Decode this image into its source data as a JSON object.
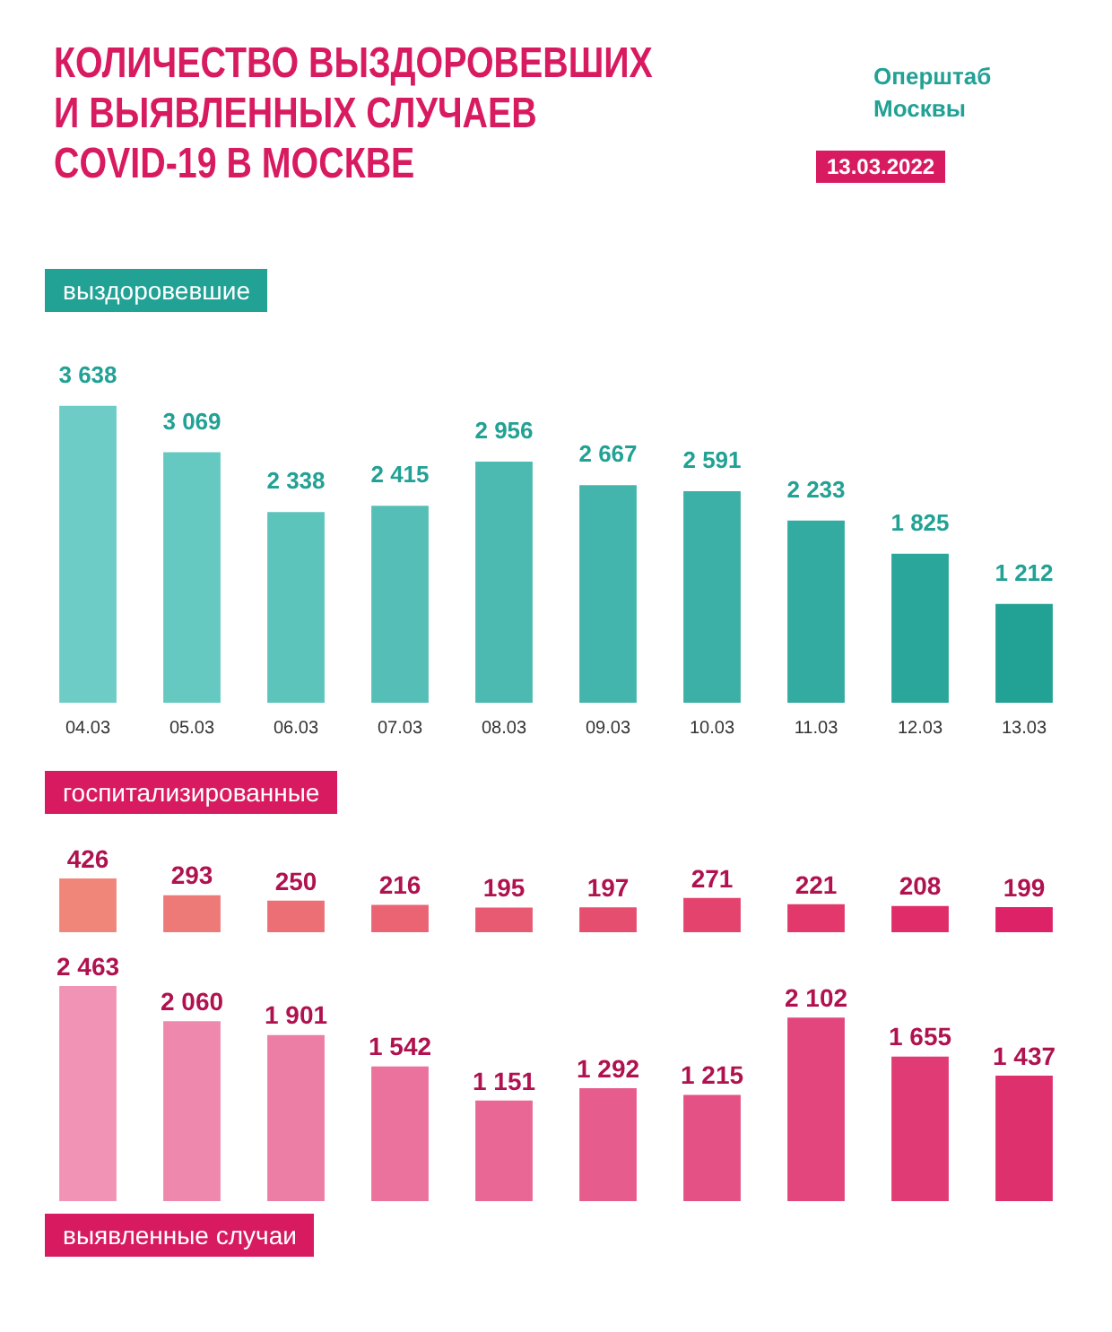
{
  "chart_data": [
    {
      "type": "bar",
      "title": "КОЛИЧЕСТВО ВЫЗДОРОВЕВШИХ\nИ ВЫЯВЛЕННЫХ СЛУЧАЕВ\nCOVID-19 В МОСКВЕ",
      "subtitle": "выздоровевшие",
      "annotations": [
        "Оперштаб\nМосквы",
        "13.03.2022"
      ],
      "categories": [
        "04.03",
        "05.03",
        "06.03",
        "07.03",
        "08.03",
        "09.03",
        "10.03",
        "11.03",
        "12.03",
        "13.03"
      ],
      "values": [
        3638,
        3069,
        2338,
        2415,
        2956,
        2667,
        2591,
        2233,
        1825,
        1212
      ],
      "value_labels": [
        "3 638",
        "3 069",
        "2 338",
        "2 415",
        "2 956",
        "2 667",
        "2 591",
        "2 233",
        "1 825",
        "1 212"
      ],
      "colors": [
        "#6dcdc6",
        "#65c9c1",
        "#5dc4bc",
        "#55bfb7",
        "#4cbab1",
        "#44b5ac",
        "#3cb0a6",
        "#33aba1",
        "#2aa69b",
        "#22a195"
      ],
      "tick_labels": "x",
      "legend": false,
      "grid": false
    },
    {
      "type": "bar",
      "subtitle": "госпитализированные",
      "categories": [
        null,
        null,
        null,
        null,
        null,
        null,
        null,
        null,
        null,
        null
      ],
      "values": [
        426,
        293,
        250,
        216,
        195,
        197,
        271,
        221,
        208,
        199
      ],
      "value_labels": [
        "426",
        "293",
        "250",
        "216",
        "195",
        "197",
        "271",
        "221",
        "208",
        "199"
      ],
      "colors": [
        "#f0857a",
        "#ee7a78",
        "#ec6f76",
        "#ea6474",
        "#e85972",
        "#e64e70",
        "#e4436e",
        "#e2386c",
        "#e02d6a",
        "#de2268"
      ],
      "tick_labels": false,
      "legend": false,
      "grid": false
    },
    {
      "type": "bar",
      "subtitle": "выявленные случаи",
      "categories": [
        null,
        null,
        null,
        null,
        null,
        null,
        null,
        null,
        null,
        null
      ],
      "values": [
        2463,
        2060,
        1901,
        1542,
        1151,
        1292,
        1215,
        2102,
        1655,
        1437
      ],
      "value_labels": [
        "2 463",
        "2 060",
        "1 901",
        "1 542",
        "1 151",
        "1 292",
        "1 215",
        "2 102",
        "1 655",
        "1 437"
      ],
      "colors": [
        "#f093b4",
        "#ee88ac",
        "#ec7da4",
        "#ea729c",
        "#e86794",
        "#e65c8c",
        "#e45184",
        "#e2467c",
        "#e03b74",
        "#de306c"
      ],
      "tick_labels": false,
      "legend": false,
      "grid": false
    }
  ]
}
